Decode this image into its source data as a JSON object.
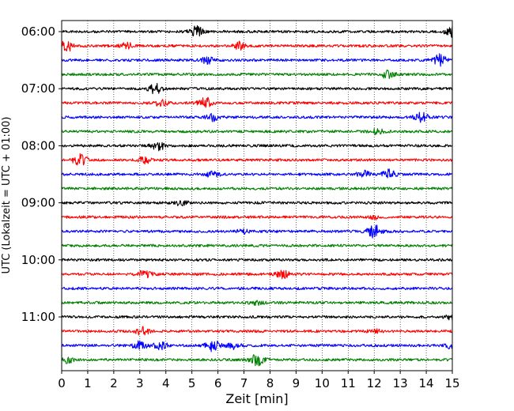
{
  "chart_data": {
    "type": "line",
    "subtype": "seismic-helicorder",
    "xlabel": "Zeit  [min]",
    "ylabel": "UTC (Lokalzeit = UTC + 01:00)",
    "xlim": [
      0,
      15
    ],
    "x_ticks": [
      0,
      1,
      2,
      3,
      4,
      5,
      6,
      7,
      8,
      9,
      10,
      11,
      12,
      13,
      14,
      15
    ],
    "x_grid": "dotted vertical",
    "trace_interval_min": 15,
    "row_time_labels": [
      "06:00",
      "07:00",
      "08:00",
      "09:00",
      "10:00",
      "11:00"
    ],
    "color_cycle": [
      "#000000",
      "#ff0000",
      "#0000ff",
      "#008000"
    ],
    "traces": [
      {
        "start": "06:00",
        "events": [
          [
            5.2,
            0.9
          ],
          [
            15.0,
            0.8
          ]
        ]
      },
      {
        "start": "06:15",
        "events": [
          [
            0.2,
            0.9
          ],
          [
            2.5,
            0.5
          ],
          [
            6.8,
            0.6
          ]
        ]
      },
      {
        "start": "06:30",
        "events": [
          [
            5.6,
            0.5
          ],
          [
            14.5,
            0.9
          ]
        ]
      },
      {
        "start": "06:45",
        "events": [
          [
            12.5,
            0.6
          ]
        ]
      },
      {
        "start": "07:00",
        "events": [
          [
            3.6,
            0.8
          ]
        ]
      },
      {
        "start": "07:15",
        "events": [
          [
            3.8,
            0.5
          ],
          [
            5.5,
            0.9
          ]
        ]
      },
      {
        "start": "07:30",
        "events": [
          [
            5.8,
            0.6
          ],
          [
            13.8,
            0.8
          ]
        ]
      },
      {
        "start": "07:45",
        "events": [
          [
            12.1,
            0.4
          ]
        ]
      },
      {
        "start": "08:00",
        "events": [
          [
            3.7,
            0.7
          ]
        ]
      },
      {
        "start": "08:15",
        "events": [
          [
            0.7,
            0.9
          ],
          [
            3.2,
            0.5
          ]
        ]
      },
      {
        "start": "08:30",
        "events": [
          [
            5.8,
            0.5
          ],
          [
            11.6,
            0.5
          ],
          [
            12.6,
            0.8
          ]
        ]
      },
      {
        "start": "08:45",
        "events": []
      },
      {
        "start": "09:00",
        "events": [
          [
            4.6,
            0.4
          ]
        ]
      },
      {
        "start": "09:15",
        "events": [
          [
            12.0,
            0.3
          ]
        ]
      },
      {
        "start": "09:30",
        "events": [
          [
            12.0,
            1.0
          ],
          [
            7.0,
            0.3
          ]
        ]
      },
      {
        "start": "09:45",
        "events": []
      },
      {
        "start": "10:00",
        "events": []
      },
      {
        "start": "10:15",
        "events": [
          [
            3.2,
            0.6
          ],
          [
            8.5,
            0.6
          ]
        ]
      },
      {
        "start": "10:30",
        "events": []
      },
      {
        "start": "10:45",
        "events": [
          [
            7.5,
            0.3
          ]
        ]
      },
      {
        "start": "11:00",
        "events": [
          [
            15.0,
            0.4
          ]
        ]
      },
      {
        "start": "11:15",
        "events": [
          [
            3.1,
            0.6
          ],
          [
            12.0,
            0.3
          ]
        ]
      },
      {
        "start": "11:30",
        "events": [
          [
            3.0,
            0.7
          ],
          [
            3.8,
            0.6
          ],
          [
            5.8,
            0.9
          ],
          [
            6.6,
            0.5
          ],
          [
            15.0,
            0.5
          ]
        ]
      },
      {
        "start": "11:45",
        "events": [
          [
            0.2,
            0.5
          ],
          [
            7.5,
            0.9
          ]
        ]
      }
    ]
  }
}
